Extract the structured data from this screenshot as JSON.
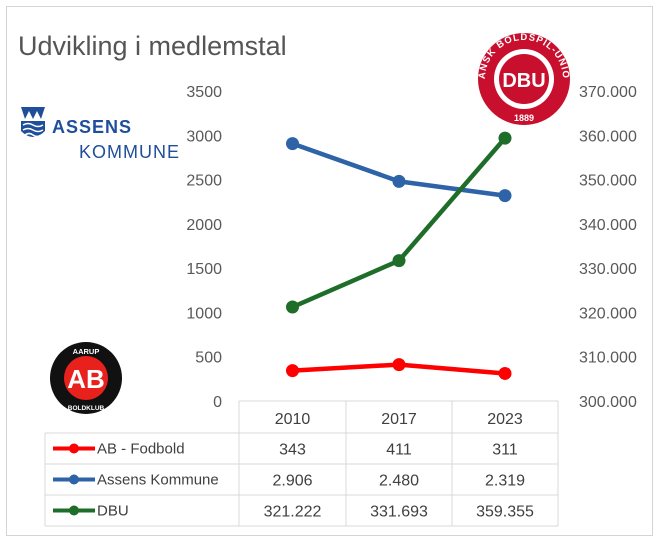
{
  "chart_data": {
    "type": "line",
    "title": "Udvikling i medlemstal",
    "categories": [
      "2010",
      "2017",
      "2023"
    ],
    "series": [
      {
        "name": "AB - Fodbold",
        "axis": "left",
        "color": "#ff0000",
        "values": [
          343,
          411,
          311
        ],
        "labels": [
          "343",
          "411",
          "311"
        ]
      },
      {
        "name": "Assens Kommune",
        "axis": "left",
        "color": "#2e63a8",
        "values": [
          2906,
          2480,
          2319
        ],
        "labels": [
          "2.906",
          "2.480",
          "2.319"
        ]
      },
      {
        "name": "DBU",
        "axis": "right",
        "color": "#1e6e2a",
        "values": [
          321222,
          331693,
          359355
        ],
        "labels": [
          "321.222",
          "331.693",
          "359.355"
        ]
      }
    ],
    "left_axis": {
      "min": 0,
      "max": 3500,
      "step": 500,
      "ticks": [
        "0",
        "500",
        "1000",
        "1500",
        "2000",
        "2500",
        "3000",
        "3500"
      ]
    },
    "right_axis": {
      "min": 300000,
      "max": 370000,
      "step": 10000,
      "ticks": [
        "300.000",
        "310.000",
        "320.000",
        "330.000",
        "340.000",
        "350.000",
        "360.000",
        "370.000"
      ]
    },
    "data_table": true,
    "grid": false
  },
  "logos": {
    "assens": {
      "line1": "ASSENS",
      "line2": "KOMMUNE"
    },
    "ab": {
      "top": "AARUP",
      "middle": "AB",
      "bottom": "BOLDKLUB"
    },
    "dbu": {
      "middle": "DBU",
      "ring": "DANSK BOLDSPIL-UNION",
      "year": "1889"
    }
  },
  "colors": {
    "text": "#404040",
    "table_border": "#d9d9d9"
  }
}
